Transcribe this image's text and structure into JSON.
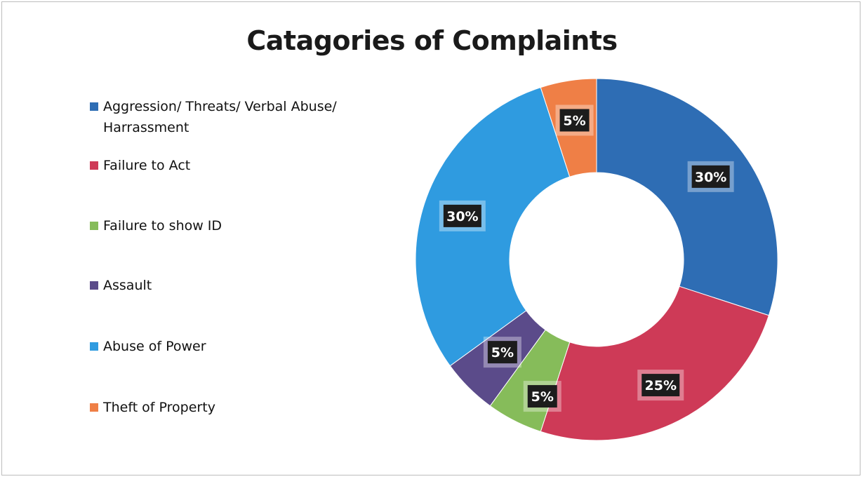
{
  "chart_data": {
    "type": "pie",
    "title": "Catagories of Complaints",
    "donut": true,
    "legend_position": "left",
    "categories": [
      "Aggression/ Threats/ Verbal Abuse/ Harrassment",
      "Failure to Act",
      "Failure to show ID",
      "Assault",
      "Abuse of Power",
      "Theft of Property"
    ],
    "values": [
      30,
      25,
      5,
      5,
      30,
      5
    ],
    "data_labels": [
      "30%",
      "25%",
      "5%",
      "5%",
      "30%",
      "5%"
    ],
    "colors": [
      "#2E6DB4",
      "#CE3A57",
      "#86BC5A",
      "#5B4B8A",
      "#2F9BE0",
      "#EF7F46"
    ]
  }
}
